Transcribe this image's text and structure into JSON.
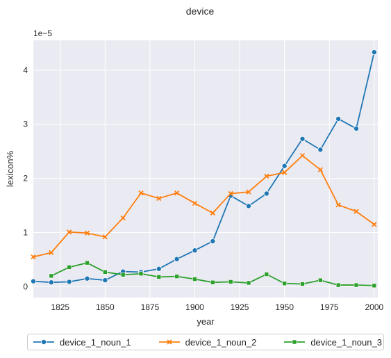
{
  "chart_data": {
    "type": "line",
    "title": "device",
    "xlabel": "year",
    "ylabel": "lexicon%",
    "y_offset_label": "1e−5",
    "xlim": [
      1810,
      2002
    ],
    "ylim": [
      -0.2,
      4.55
    ],
    "x_ticks": [
      1825,
      1850,
      1875,
      1900,
      1925,
      1950,
      1975,
      2000
    ],
    "y_ticks": [
      0,
      1,
      2,
      3,
      4
    ],
    "grid": true,
    "legend_position": "bottom-center",
    "background": "#eaeaf2",
    "series": [
      {
        "name": "device_1_noun_1",
        "color": "#1f77b4",
        "marker": "circle",
        "x": [
          1810,
          1820,
          1830,
          1840,
          1850,
          1860,
          1870,
          1880,
          1890,
          1900,
          1910,
          1920,
          1930,
          1940,
          1950,
          1960,
          1970,
          1980,
          1990,
          2000
        ],
        "y": [
          0.1,
          0.08,
          0.09,
          0.15,
          0.12,
          0.28,
          0.27,
          0.33,
          0.51,
          0.67,
          0.84,
          1.68,
          1.49,
          1.72,
          2.23,
          2.73,
          2.53,
          3.1,
          2.92,
          4.33
        ]
      },
      {
        "name": "device_1_noun_2",
        "color": "#ff7f0e",
        "marker": "x",
        "x": [
          1810,
          1820,
          1830,
          1840,
          1850,
          1860,
          1870,
          1880,
          1890,
          1900,
          1910,
          1920,
          1930,
          1940,
          1950,
          1960,
          1970,
          1980,
          1990,
          2000
        ],
        "y": [
          0.55,
          0.63,
          1.01,
          0.99,
          0.92,
          1.27,
          1.73,
          1.63,
          1.73,
          1.54,
          1.36,
          1.72,
          1.75,
          2.04,
          2.11,
          2.42,
          2.16,
          1.51,
          1.39,
          1.15
        ]
      },
      {
        "name": "device_1_noun_3",
        "color": "#2ca02c",
        "marker": "square",
        "x": [
          1820,
          1830,
          1840,
          1850,
          1860,
          1870,
          1880,
          1890,
          1900,
          1910,
          1920,
          1930,
          1940,
          1950,
          1960,
          1970,
          1980,
          1990,
          2000
        ],
        "y": [
          0.2,
          0.36,
          0.44,
          0.27,
          0.22,
          0.24,
          0.18,
          0.19,
          0.14,
          0.08,
          0.09,
          0.07,
          0.23,
          0.06,
          0.05,
          0.12,
          0.03,
          0.03,
          0.02
        ]
      }
    ]
  }
}
